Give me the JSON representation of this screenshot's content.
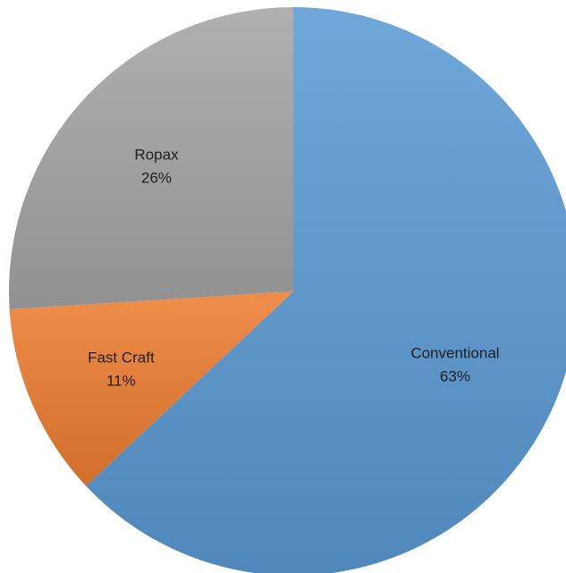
{
  "chart_data": {
    "type": "pie",
    "title": "",
    "slices": [
      {
        "name": "Conventional",
        "value": 63,
        "percent_label": "63%",
        "color": "#5b9bd5"
      },
      {
        "name": "Fast Craft",
        "value": 11,
        "percent_label": "11%",
        "color": "#ed7d31"
      },
      {
        "name": "Ropax",
        "value": 26,
        "percent_label": "26%",
        "color": "#a5a5a5"
      }
    ],
    "start_angle": "12 o'clock",
    "direction": "clockwise",
    "legend": "none",
    "data_labels": "category name and percentage inside slices"
  }
}
